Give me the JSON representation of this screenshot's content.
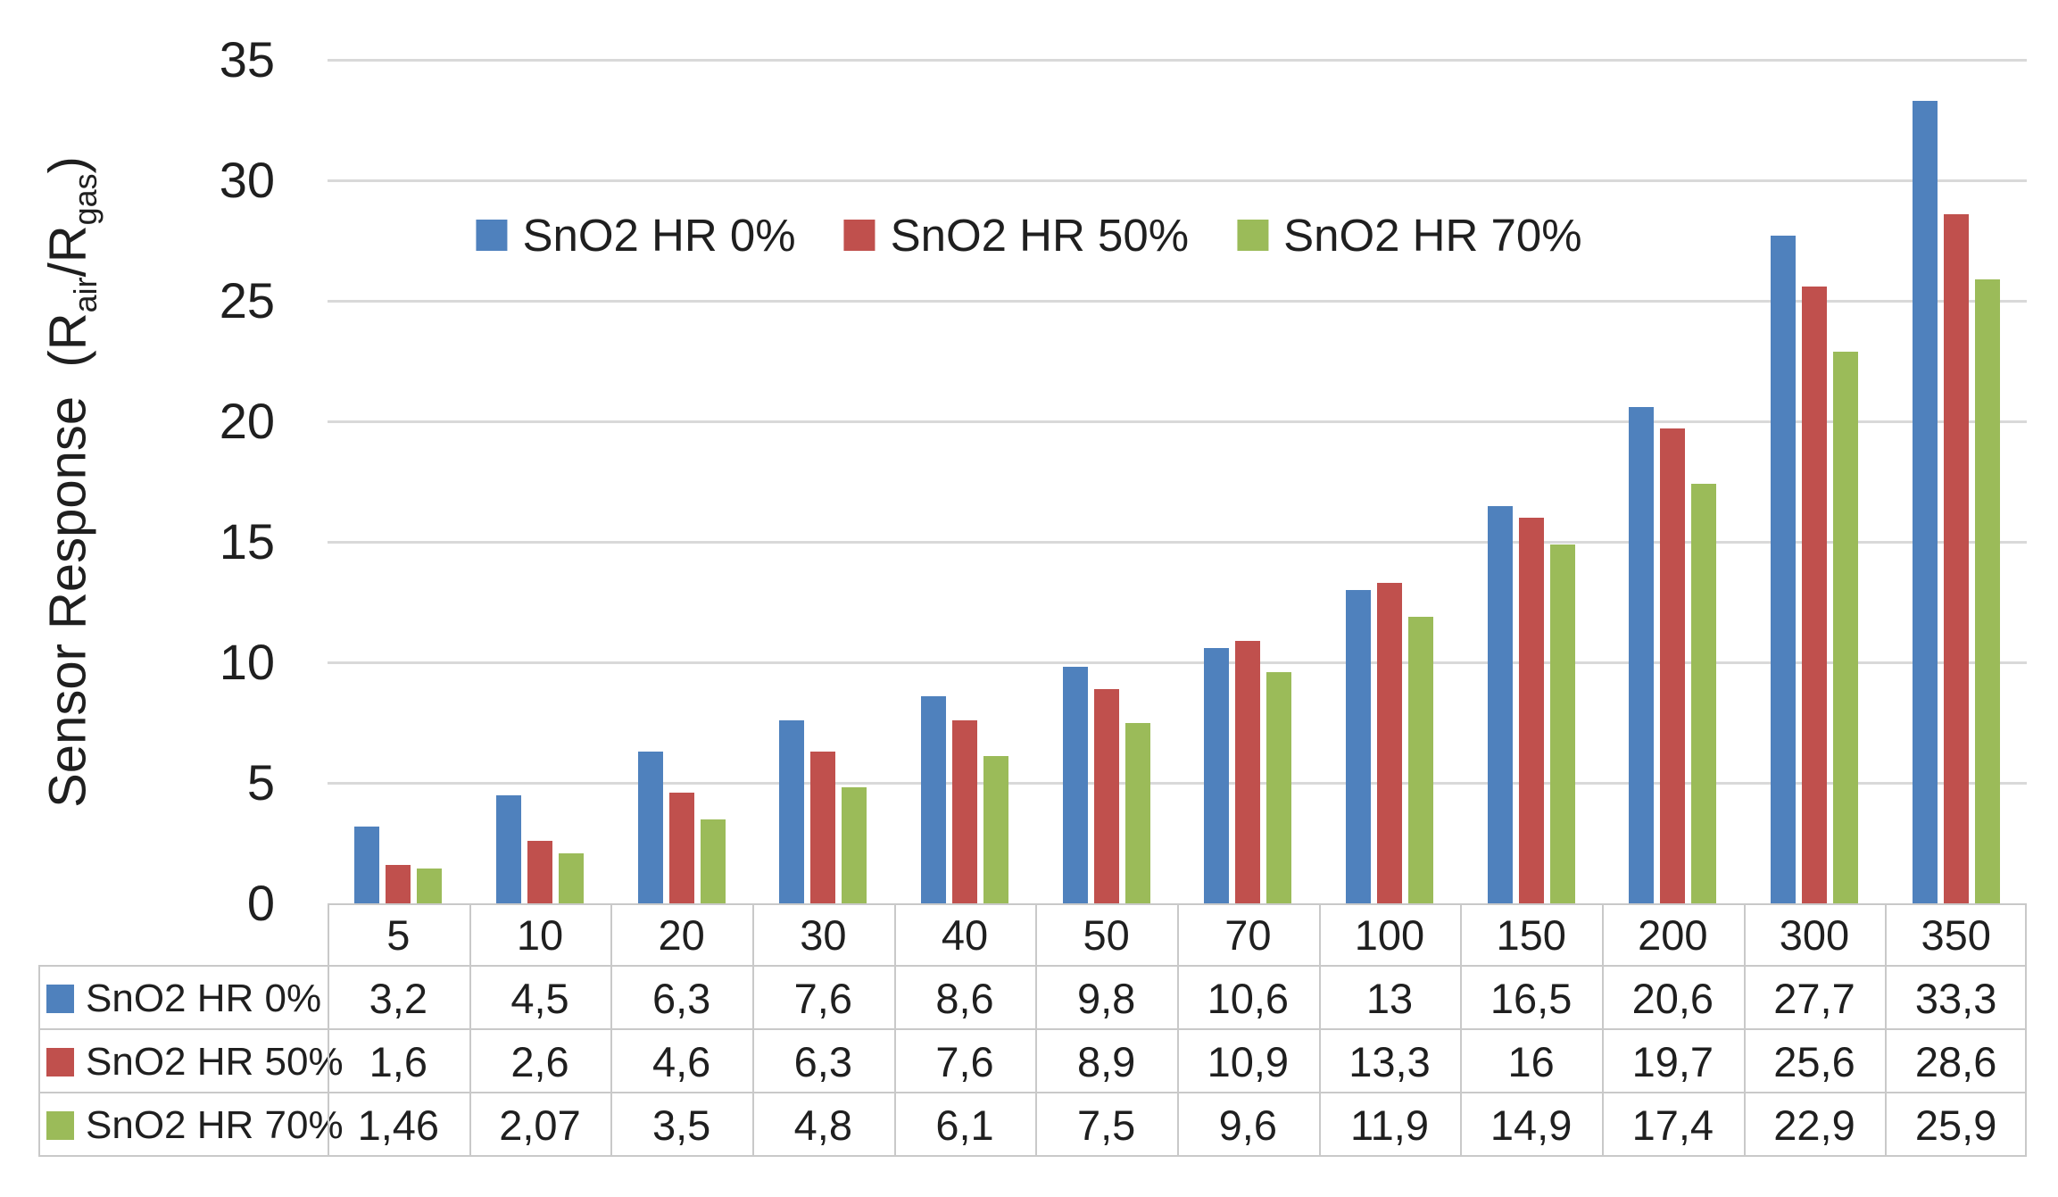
{
  "figure": {
    "background": "#ffffff",
    "text_color": "#1f1f1f"
  },
  "colors": {
    "series_blue": "#4F81BD",
    "series_red": "#C0504D",
    "series_green": "#9BBB59",
    "gridline": "#D9D9D9",
    "table_border": "#C9C9C9"
  },
  "y_axis": {
    "title_parts": [
      {
        "text": "Sensor Response  (R"
      },
      {
        "sub": "air"
      },
      {
        "text": "/R"
      },
      {
        "sub": "gas"
      },
      {
        "text": ")"
      }
    ],
    "tick_labels": [
      "0",
      "5",
      "10",
      "15",
      "20",
      "25",
      "30",
      "35"
    ]
  },
  "chart_data": {
    "type": "bar",
    "title": "",
    "xlabel": "",
    "ylabel": "Sensor Response (Rair/Rgas)",
    "ylim": [
      0,
      35
    ],
    "y_tick_step": 5,
    "grid": true,
    "legend_position": "top-center",
    "data_table_shown": true,
    "categories": [
      "5",
      "10",
      "20",
      "30",
      "40",
      "50",
      "70",
      "100",
      "150",
      "200",
      "300",
      "350"
    ],
    "series": [
      {
        "name": "SnO2 HR 0%",
        "color": "#4F81BD",
        "values": [
          3.2,
          4.5,
          6.3,
          7.6,
          8.6,
          9.8,
          10.6,
          13,
          16.5,
          20.6,
          27.7,
          33.3
        ],
        "display": [
          "3,2",
          "4,5",
          "6,3",
          "7,6",
          "8,6",
          "9,8",
          "10,6",
          "13",
          "16,5",
          "20,6",
          "27,7",
          "33,3"
        ]
      },
      {
        "name": "SnO2 HR 50%",
        "color": "#C0504D",
        "values": [
          1.6,
          2.6,
          4.6,
          6.3,
          7.6,
          8.9,
          10.9,
          13.3,
          16,
          19.7,
          25.6,
          28.6
        ],
        "display": [
          "1,6",
          "2,6",
          "4,6",
          "6,3",
          "7,6",
          "8,9",
          "10,9",
          "13,3",
          "16",
          "19,7",
          "25,6",
          "28,6"
        ]
      },
      {
        "name": "SnO2 HR 70%",
        "color": "#9BBB59",
        "values": [
          1.46,
          2.07,
          3.5,
          4.8,
          6.1,
          7.5,
          9.6,
          11.9,
          14.9,
          17.4,
          22.9,
          25.9
        ],
        "display": [
          "1,46",
          "2,07",
          "3,5",
          "4,8",
          "6,1",
          "7,5",
          "9,6",
          "11,9",
          "14,9",
          "17,4",
          "22,9",
          "25,9"
        ]
      }
    ]
  }
}
